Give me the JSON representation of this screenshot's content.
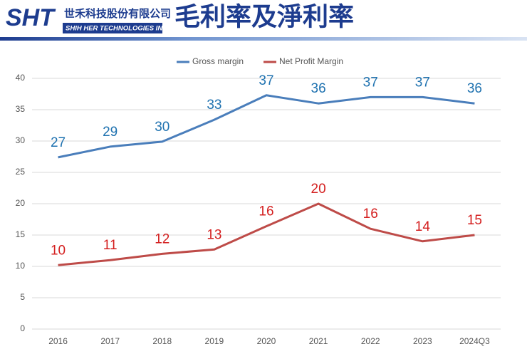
{
  "header": {
    "logo": "SHT",
    "company_zh": "世禾科技股份有限公司",
    "company_en": "SHIH HER TECHNOLOGIES INC.",
    "title": "毛利率及淨利率"
  },
  "chart_data": {
    "type": "line",
    "categories": [
      "2016",
      "2017",
      "2018",
      "2019",
      "2020",
      "2021",
      "2022",
      "2023",
      "2024Q3"
    ],
    "series": [
      {
        "name": "Gross margin",
        "color": "#4a7ebb",
        "label_color": "#1f72b0",
        "values": [
          27.4,
          29.1,
          29.9,
          33.4,
          37.3,
          36.0,
          37.0,
          37.0,
          36.0
        ],
        "value_labels": [
          "27",
          "29",
          "30",
          "33",
          "37",
          "36",
          "37",
          "37",
          "36"
        ]
      },
      {
        "name": "Net Profit Margin",
        "color": "#be4b48",
        "label_color": "#d42020",
        "values": [
          10.2,
          11.0,
          12.0,
          12.7,
          16.4,
          20.0,
          16.0,
          14.0,
          15.0
        ],
        "value_labels": [
          "10",
          "11",
          "12",
          "13",
          "16",
          "20",
          "16",
          "14",
          "15"
        ]
      }
    ],
    "ylim": [
      0,
      40
    ],
    "yticks": [
      0,
      5,
      10,
      15,
      20,
      25,
      30,
      35,
      40
    ],
    "grid": true,
    "legend": "top"
  }
}
